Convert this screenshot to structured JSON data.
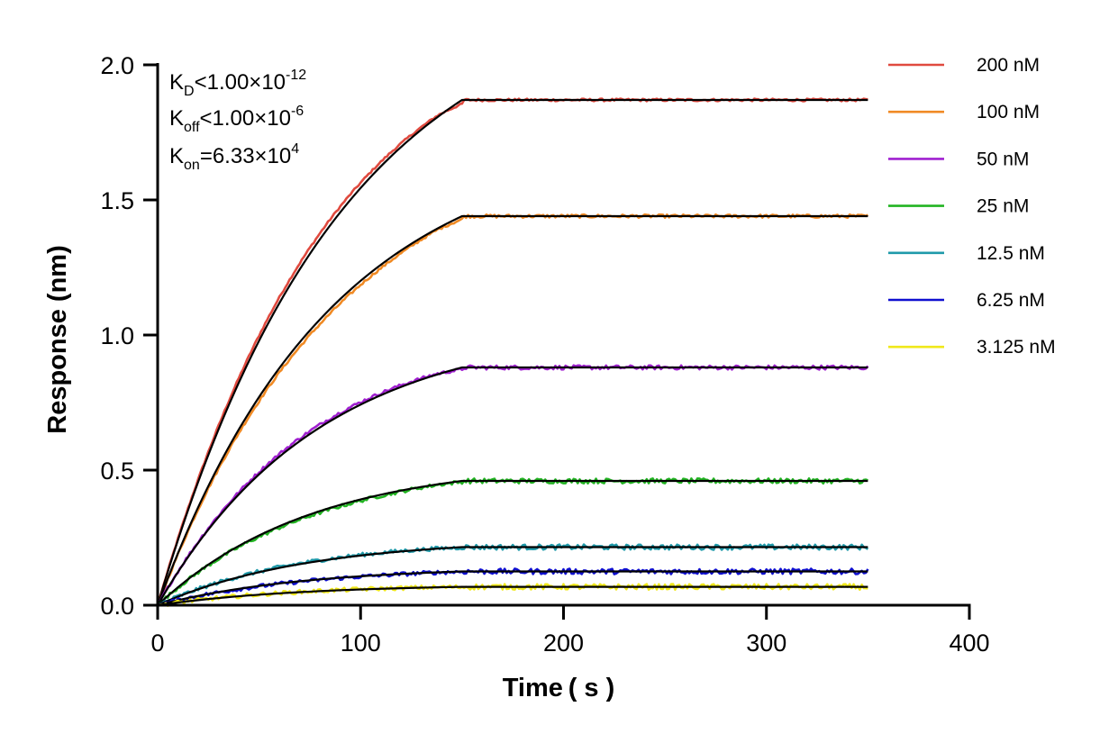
{
  "chart_data": {
    "type": "line",
    "title": "",
    "xlabel": "Time ( s )",
    "ylabel": "Response (nm)",
    "xlim": [
      0,
      400
    ],
    "ylim": [
      0,
      2.0
    ],
    "x_ticks": [
      "0",
      "100",
      "200",
      "300",
      "400"
    ],
    "y_ticks": [
      "0.0",
      "0.5",
      "1.0",
      "1.5",
      "2.0"
    ],
    "grid": false,
    "legend_position": "right",
    "association_end_time": 150,
    "end_time": 350,
    "annotations": {
      "kd": {
        "symbol": "K",
        "sub": "D",
        "rel": "<",
        "value": "1.00×10",
        "exp": "-12"
      },
      "koff": {
        "symbol": "K",
        "sub": "off",
        "rel": "<",
        "value": "1.00×10",
        "exp": "-6"
      },
      "kon": {
        "symbol": "K",
        "sub": "on",
        "rel": "=",
        "value": "6.33×10",
        "exp": "4"
      }
    },
    "fit_color": "#000000",
    "series": [
      {
        "name": "200 nM",
        "color": "#e04a3f",
        "plateau": 1.87
      },
      {
        "name": "100 nM",
        "color": "#f08a24",
        "plateau": 1.44
      },
      {
        "name": "50 nM",
        "color": "#a020d0",
        "plateau": 0.88
      },
      {
        "name": "25 nM",
        "color": "#22b422",
        "plateau": 0.46
      },
      {
        "name": "12.5 nM",
        "color": "#1f9aaa",
        "plateau": 0.215
      },
      {
        "name": "6.25 nM",
        "color": "#1010d0",
        "plateau": 0.125
      },
      {
        "name": "3.125 nM",
        "color": "#f0e81a",
        "plateau": 0.068
      }
    ]
  }
}
